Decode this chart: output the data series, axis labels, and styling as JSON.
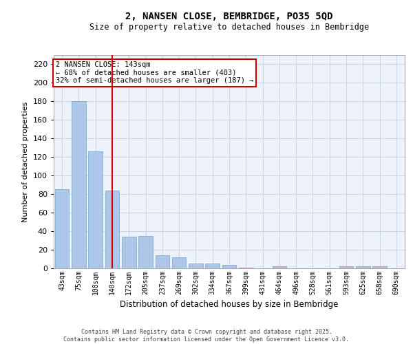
{
  "title": "2, NANSEN CLOSE, BEMBRIDGE, PO35 5QD",
  "subtitle": "Size of property relative to detached houses in Bembridge",
  "xlabel": "Distribution of detached houses by size in Bembridge",
  "ylabel": "Number of detached properties",
  "categories": [
    "43sqm",
    "75sqm",
    "108sqm",
    "140sqm",
    "172sqm",
    "205sqm",
    "237sqm",
    "269sqm",
    "302sqm",
    "334sqm",
    "367sqm",
    "399sqm",
    "431sqm",
    "464sqm",
    "496sqm",
    "528sqm",
    "561sqm",
    "593sqm",
    "625sqm",
    "658sqm",
    "690sqm"
  ],
  "values": [
    85,
    180,
    126,
    84,
    34,
    35,
    14,
    12,
    5,
    5,
    4,
    1,
    0,
    2,
    0,
    0,
    0,
    2,
    2,
    2,
    0
  ],
  "bar_color": "#aec6e8",
  "bar_edge_color": "#7bafd4",
  "vline_index": 3,
  "vline_color": "#cc0000",
  "annotation_text": "2 NANSEN CLOSE: 143sqm\n← 68% of detached houses are smaller (403)\n32% of semi-detached houses are larger (187) →",
  "bg_color": "#eef2fb",
  "grid_color": "#c8d4e8",
  "ylim": [
    0,
    230
  ],
  "yticks": [
    0,
    20,
    40,
    60,
    80,
    100,
    120,
    140,
    160,
    180,
    200,
    220
  ],
  "footer_line1": "Contains HM Land Registry data © Crown copyright and database right 2025.",
  "footer_line2": "Contains public sector information licensed under the Open Government Licence v3.0."
}
